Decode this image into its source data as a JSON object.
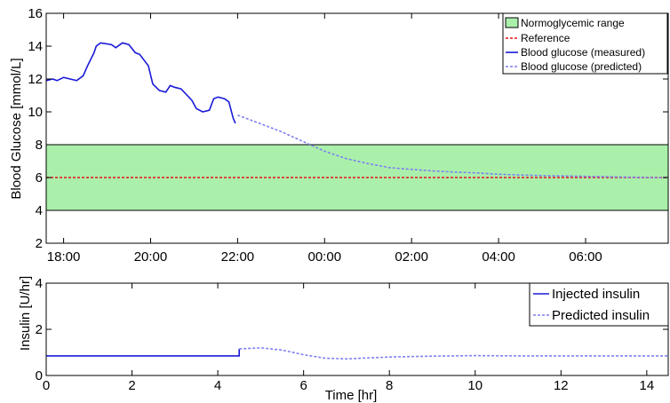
{
  "chart_data": [
    {
      "type": "line",
      "xlabel": "",
      "ylabel": "Blood Glucose [mmol/L]",
      "ylim": [
        2,
        16
      ],
      "yticks": [
        "2",
        "4",
        "6",
        "8",
        "10",
        "12",
        "14",
        "16"
      ],
      "x_unit": "hours (time of day tick labels)",
      "xlim": [
        17.6,
        31.9
      ],
      "xticks": [
        {
          "x": 18,
          "label": "18:00"
        },
        {
          "x": 20,
          "label": "20:00"
        },
        {
          "x": 22,
          "label": "22:00"
        },
        {
          "x": 24,
          "label": "00:00"
        },
        {
          "x": 26,
          "label": "02:00"
        },
        {
          "x": 28,
          "label": "04:00"
        },
        {
          "x": 30,
          "label": "06:00"
        }
      ],
      "grid": false,
      "legend_position": "top-right",
      "normoglycemic_range": {
        "name": "Normoglycemic range",
        "y": [
          4,
          8
        ],
        "color": "#aaf0aa"
      },
      "series": [
        {
          "name": "Reference",
          "style": "dashed",
          "color": "#e8111b",
          "x": [
            17.6,
            31.9
          ],
          "y": [
            6,
            6
          ]
        },
        {
          "name": "Blood glucose (measured)",
          "style": "solid",
          "color": "#1a1ad8",
          "x": [
            17.6,
            17.75,
            17.85,
            18.0,
            18.15,
            18.3,
            18.45,
            18.55,
            18.7,
            18.75,
            18.85,
            19.1,
            19.2,
            19.35,
            19.5,
            19.65,
            19.75,
            19.95,
            20.05,
            20.2,
            20.35,
            20.45,
            20.55,
            20.7,
            20.95,
            21.05,
            21.2,
            21.35,
            21.45,
            21.55,
            21.7,
            21.8,
            21.9,
            21.95
          ],
          "y": [
            11.9,
            12.0,
            11.9,
            12.1,
            12.0,
            11.9,
            12.2,
            12.8,
            13.6,
            14.0,
            14.2,
            14.1,
            13.9,
            14.2,
            14.1,
            13.6,
            13.5,
            12.8,
            11.7,
            11.3,
            11.2,
            11.6,
            11.5,
            11.4,
            10.7,
            10.2,
            10.0,
            10.1,
            10.8,
            10.9,
            10.8,
            10.6,
            9.6,
            9.3
          ]
        },
        {
          "name": "Blood glucose (predicted)",
          "style": "dashed",
          "color": "#7f7ff0",
          "x": [
            22.0,
            22.5,
            23.0,
            23.5,
            24.0,
            24.5,
            25.0,
            25.5,
            26.0,
            26.5,
            27.0,
            27.5,
            28.0,
            28.5,
            29.0,
            29.5,
            30.0,
            30.5,
            31.0,
            31.5,
            31.9
          ],
          "y": [
            9.8,
            9.3,
            8.8,
            8.2,
            7.6,
            7.15,
            6.85,
            6.6,
            6.5,
            6.4,
            6.33,
            6.28,
            6.2,
            6.15,
            6.12,
            6.1,
            6.07,
            6.05,
            6.02,
            6.0,
            6.0
          ]
        }
      ]
    },
    {
      "type": "line",
      "xlabel": "Time [hr]",
      "ylabel": "Insulin [U/hr]",
      "ylim": [
        0,
        4
      ],
      "yticks": [
        "0",
        "2",
        "4"
      ],
      "xlim": [
        0,
        14.5
      ],
      "xticks": [
        {
          "x": 0,
          "label": "0"
        },
        {
          "x": 2,
          "label": "2"
        },
        {
          "x": 4,
          "label": "4"
        },
        {
          "x": 6,
          "label": "6"
        },
        {
          "x": 8,
          "label": "8"
        },
        {
          "x": 10,
          "label": "10"
        },
        {
          "x": 12,
          "label": "12"
        },
        {
          "x": 14,
          "label": "14"
        }
      ],
      "grid": false,
      "legend_position": "top-right",
      "series": [
        {
          "name": "Injected insulin",
          "style": "solid",
          "color": "#1a1ad8",
          "x": [
            0,
            4.5,
            4.5
          ],
          "y": [
            0.85,
            0.85,
            1.15
          ]
        },
        {
          "name": "Predicted insulin",
          "style": "dashed",
          "color": "#7f7ff0",
          "x": [
            4.5,
            5.0,
            5.5,
            6.0,
            6.5,
            7.0,
            7.5,
            8.0,
            9.0,
            10.0,
            11.0,
            12.0,
            13.0,
            14.5
          ],
          "y": [
            1.15,
            1.2,
            1.1,
            0.9,
            0.75,
            0.72,
            0.76,
            0.8,
            0.84,
            0.86,
            0.85,
            0.85,
            0.85,
            0.85
          ]
        }
      ]
    }
  ]
}
